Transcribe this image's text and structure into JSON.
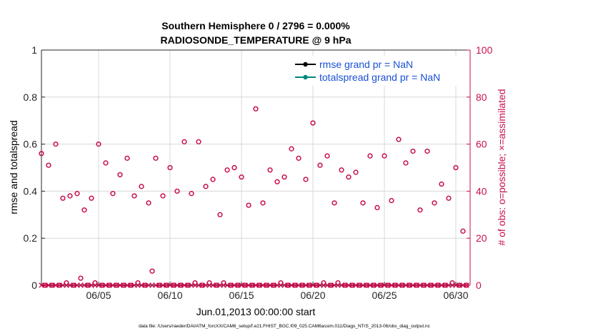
{
  "chart_data": {
    "type": "scatter",
    "title": "Southern Hemisphere 0 / 2796 = 0.000%",
    "subtitle": "RADIOSONDE_TEMPERATURE @ 9 hPa",
    "xlabel": "Jun.01,2013 00:00:00 start",
    "ylabel": "rmse and totalspread",
    "ylabel_right": "# of obs: o=possible; ×=assimilated",
    "footer": "data file: /Users/raeder/DAI/ATM_forcXX/CAM6_setup/f.e21.FHIST_BGC.f09_025.CAM6assim.011/Diags_NTrS_2013-06/obs_diag_output.nc",
    "xlim": [
      1,
      31
    ],
    "ylim": [
      0,
      1
    ],
    "ylim_right": [
      0,
      100
    ],
    "x_ticks": [
      5,
      10,
      15,
      20,
      25,
      30
    ],
    "x_tick_labels": [
      "06/05",
      "06/10",
      "06/15",
      "06/20",
      "06/25",
      "06/30"
    ],
    "y_ticks": [
      0,
      0.2,
      0.4,
      0.6,
      0.8,
      1
    ],
    "y_tick_labels": [
      "0",
      "0.2",
      "0.4",
      "0.6",
      "0.8",
      "1"
    ],
    "y_right_ticks": [
      0,
      20,
      40,
      60,
      80,
      100
    ],
    "y_right_tick_labels": [
      "0",
      "20",
      "40",
      "60",
      "80",
      "100"
    ],
    "grid": true,
    "legend": {
      "position": "top-right",
      "entries": [
        {
          "label": "rmse grand pr = NaN",
          "color": "#000000"
        },
        {
          "label": "totalspread grand pr = NaN",
          "color": "#00897b"
        }
      ]
    },
    "colors": {
      "obs": "#c8104f",
      "rmse": "#000000",
      "totalspread": "#00897b",
      "legend_text": "#1a4fd6"
    },
    "series": [
      {
        "name": "possible",
        "axis": "right",
        "marker": "circle",
        "points": [
          [
            1.0,
            56
          ],
          [
            1.25,
            0
          ],
          [
            1.5,
            51
          ],
          [
            1.75,
            0
          ],
          [
            2.0,
            60
          ],
          [
            2.25,
            0
          ],
          [
            2.5,
            37
          ],
          [
            2.75,
            1
          ],
          [
            3.0,
            38
          ],
          [
            3.25,
            0
          ],
          [
            3.5,
            39
          ],
          [
            3.75,
            3
          ],
          [
            4.0,
            32
          ],
          [
            4.25,
            0
          ],
          [
            4.5,
            37
          ],
          [
            4.75,
            1
          ],
          [
            5.0,
            60
          ],
          [
            5.25,
            0
          ],
          [
            5.5,
            52
          ],
          [
            5.75,
            0
          ],
          [
            6.0,
            39
          ],
          [
            6.25,
            0
          ],
          [
            6.5,
            47
          ],
          [
            6.75,
            0
          ],
          [
            7.0,
            54
          ],
          [
            7.25,
            0
          ],
          [
            7.5,
            38
          ],
          [
            7.75,
            1
          ],
          [
            8.0,
            42
          ],
          [
            8.25,
            0
          ],
          [
            8.5,
            35
          ],
          [
            8.75,
            6
          ],
          [
            9.0,
            54
          ],
          [
            9.25,
            0
          ],
          [
            9.5,
            38
          ],
          [
            9.75,
            0
          ],
          [
            10.0,
            50
          ],
          [
            10.25,
            0
          ],
          [
            10.5,
            40
          ],
          [
            10.75,
            0
          ],
          [
            11.0,
            61
          ],
          [
            11.25,
            0
          ],
          [
            11.5,
            39
          ],
          [
            11.75,
            1
          ],
          [
            12.0,
            61
          ],
          [
            12.25,
            0
          ],
          [
            12.5,
            42
          ],
          [
            12.75,
            1
          ],
          [
            13.0,
            45
          ],
          [
            13.25,
            0
          ],
          [
            13.5,
            30
          ],
          [
            13.75,
            1
          ],
          [
            14.0,
            49
          ],
          [
            14.25,
            0
          ],
          [
            14.5,
            50
          ],
          [
            14.75,
            0
          ],
          [
            15.0,
            46
          ],
          [
            15.25,
            0
          ],
          [
            15.5,
            34
          ],
          [
            15.75,
            0
          ],
          [
            16.0,
            75
          ],
          [
            16.25,
            0
          ],
          [
            16.5,
            35
          ],
          [
            16.75,
            0
          ],
          [
            17.0,
            49
          ],
          [
            17.25,
            0
          ],
          [
            17.5,
            44
          ],
          [
            17.75,
            1
          ],
          [
            18.0,
            46
          ],
          [
            18.25,
            0
          ],
          [
            18.5,
            58
          ],
          [
            18.75,
            0
          ],
          [
            19.0,
            54
          ],
          [
            19.25,
            0
          ],
          [
            19.5,
            45
          ],
          [
            19.75,
            0
          ],
          [
            20.0,
            69
          ],
          [
            20.25,
            0
          ],
          [
            20.5,
            51
          ],
          [
            20.75,
            1
          ],
          [
            21.0,
            55
          ],
          [
            21.25,
            0
          ],
          [
            21.5,
            35
          ],
          [
            21.75,
            1
          ],
          [
            22.0,
            49
          ],
          [
            22.25,
            0
          ],
          [
            22.5,
            46
          ],
          [
            22.75,
            0
          ],
          [
            23.0,
            48
          ],
          [
            23.25,
            0
          ],
          [
            23.5,
            35
          ],
          [
            23.75,
            0
          ],
          [
            24.0,
            55
          ],
          [
            24.25,
            0
          ],
          [
            24.5,
            33
          ],
          [
            24.75,
            0
          ],
          [
            25.0,
            55
          ],
          [
            25.25,
            0
          ],
          [
            25.5,
            36
          ],
          [
            25.75,
            0
          ],
          [
            26.0,
            62
          ],
          [
            26.25,
            0
          ],
          [
            26.5,
            52
          ],
          [
            26.75,
            0
          ],
          [
            27.0,
            57
          ],
          [
            27.25,
            0
          ],
          [
            27.5,
            32
          ],
          [
            27.75,
            0
          ],
          [
            28.0,
            57
          ],
          [
            28.25,
            0
          ],
          [
            28.5,
            35
          ],
          [
            28.75,
            0
          ],
          [
            29.0,
            43
          ],
          [
            29.25,
            0
          ],
          [
            29.5,
            37
          ],
          [
            29.75,
            1
          ],
          [
            30.0,
            50
          ],
          [
            30.25,
            0
          ],
          [
            30.5,
            23
          ],
          [
            30.75,
            0
          ]
        ]
      },
      {
        "name": "assimilated",
        "axis": "right",
        "marker": "x",
        "x_start": 1.0,
        "x_end": 30.75,
        "x_step": 0.25,
        "value": 0
      }
    ]
  }
}
